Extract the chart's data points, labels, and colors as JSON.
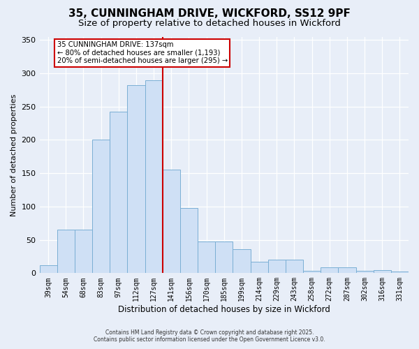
{
  "title": "35, CUNNINGHAM DRIVE, WICKFORD, SS12 9PF",
  "subtitle": "Size of property relative to detached houses in Wickford",
  "xlabel": "Distribution of detached houses by size in Wickford",
  "ylabel": "Number of detached properties",
  "bar_labels": [
    "39sqm",
    "54sqm",
    "68sqm",
    "83sqm",
    "97sqm",
    "112sqm",
    "127sqm",
    "141sqm",
    "156sqm",
    "170sqm",
    "185sqm",
    "199sqm",
    "214sqm",
    "229sqm",
    "243sqm",
    "258sqm",
    "272sqm",
    "287sqm",
    "302sqm",
    "316sqm",
    "331sqm"
  ],
  "bar_values": [
    12,
    65,
    65,
    200,
    242,
    282,
    289,
    155,
    98,
    48,
    47,
    36,
    17,
    20,
    20,
    4,
    9,
    9,
    3,
    5,
    2
  ],
  "bar_color": "#cfe0f5",
  "bar_edge_color": "#7aafd4",
  "annotation_title": "35 CUNNINGHAM DRIVE: 137sqm",
  "annotation_line1": "← 80% of detached houses are smaller (1,193)",
  "annotation_line2": "20% of semi-detached houses are larger (295) →",
  "vline_index": 7,
  "vline_color": "#cc0000",
  "annotation_box_color": "#ffffff",
  "annotation_box_edge": "#cc0000",
  "footer1": "Contains HM Land Registry data © Crown copyright and database right 2025.",
  "footer2": "Contains public sector information licensed under the Open Government Licence v3.0.",
  "bg_color": "#e8eef8",
  "ylim": [
    0,
    355
  ],
  "yticks": [
    0,
    50,
    100,
    150,
    200,
    250,
    300,
    350
  ],
  "title_fontsize": 11,
  "subtitle_fontsize": 9.5
}
